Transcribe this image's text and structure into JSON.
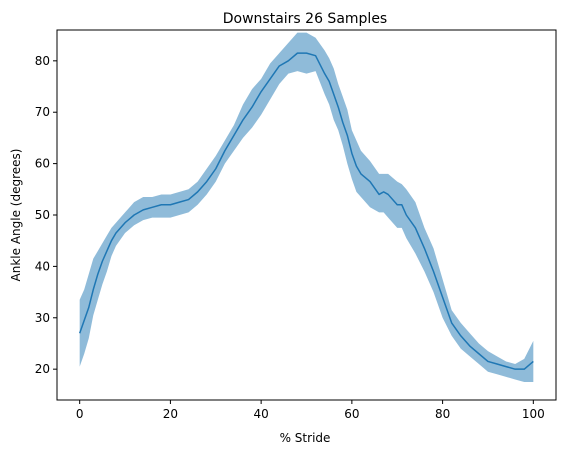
{
  "chart_data": {
    "type": "line",
    "title": "Downstairs 26 Samples",
    "xlabel": "% Stride",
    "ylabel": "Ankle Angle (degrees)",
    "xlim": [
      -5,
      105
    ],
    "ylim": [
      14,
      86
    ],
    "x_ticks": [
      0,
      20,
      40,
      60,
      80,
      100
    ],
    "y_ticks": [
      20,
      30,
      40,
      50,
      60,
      70,
      80
    ],
    "x_tick_labels": [
      "0",
      "20",
      "40",
      "60",
      "80",
      "100"
    ],
    "y_tick_labels": [
      "20",
      "30",
      "40",
      "50",
      "60",
      "70",
      "80"
    ],
    "grid": false,
    "line_color": "#1f77b4",
    "band_color": "#1f77b4",
    "band_opacity": 0.5,
    "series": [
      {
        "x": [
          0,
          1,
          2,
          3,
          4,
          5,
          6,
          7,
          8,
          10,
          12,
          14,
          16,
          18,
          20,
          22,
          24,
          26,
          28,
          30,
          32,
          34,
          36,
          38,
          40,
          42,
          44,
          46,
          48,
          50,
          52,
          54,
          55,
          56,
          57,
          58,
          59,
          60,
          61,
          62,
          64,
          66,
          67,
          68,
          70,
          71,
          72,
          74,
          76,
          78,
          80,
          82,
          84,
          86,
          88,
          90,
          92,
          94,
          96,
          98,
          100
        ],
        "mean": [
          27.0,
          29.5,
          32.0,
          35.5,
          38.5,
          41.0,
          43.0,
          45.0,
          46.5,
          48.5,
          50.0,
          51.0,
          51.5,
          52.0,
          52.0,
          52.5,
          53.0,
          54.5,
          56.5,
          59.0,
          62.5,
          65.5,
          68.5,
          71.0,
          74.0,
          76.5,
          79.0,
          80.0,
          81.5,
          81.5,
          81.0,
          77.5,
          76.0,
          73.5,
          71.0,
          68.0,
          65.5,
          62.0,
          59.5,
          58.0,
          56.5,
          54.0,
          54.5,
          54.0,
          52.0,
          52.0,
          50.0,
          47.5,
          43.5,
          39.0,
          34.0,
          29.0,
          26.5,
          24.5,
          23.0,
          21.5,
          21.0,
          20.5,
          20.0,
          20.0,
          21.5
        ],
        "upper": [
          33.5,
          35.5,
          38.5,
          41.5,
          43.0,
          44.5,
          46.0,
          47.5,
          48.5,
          50.5,
          52.5,
          53.5,
          53.5,
          54.0,
          54.0,
          54.5,
          55.0,
          56.5,
          59.0,
          61.5,
          64.5,
          67.5,
          71.5,
          74.5,
          76.5,
          79.5,
          81.5,
          83.5,
          85.5,
          85.5,
          84.5,
          82.0,
          80.5,
          78.5,
          75.5,
          73.0,
          70.5,
          66.5,
          64.5,
          62.5,
          60.5,
          58.0,
          58.0,
          58.0,
          56.5,
          56.0,
          55.0,
          52.5,
          47.5,
          43.5,
          37.5,
          31.5,
          29.0,
          27.0,
          25.0,
          23.5,
          22.5,
          21.5,
          21.0,
          22.0,
          25.5
        ],
        "lower": [
          20.5,
          23.0,
          26.0,
          30.5,
          33.5,
          36.5,
          39.0,
          42.0,
          44.0,
          46.5,
          48.0,
          49.0,
          49.5,
          49.5,
          49.5,
          50.0,
          50.5,
          52.0,
          54.0,
          56.5,
          60.0,
          62.5,
          65.0,
          67.0,
          69.5,
          72.5,
          75.5,
          77.5,
          78.0,
          77.5,
          78.0,
          73.5,
          71.5,
          68.5,
          66.5,
          63.5,
          60.0,
          57.0,
          54.5,
          53.5,
          51.5,
          50.5,
          50.5,
          49.5,
          47.5,
          47.5,
          45.5,
          42.5,
          39.0,
          35.0,
          30.0,
          26.5,
          24.0,
          22.5,
          21.0,
          19.5,
          19.0,
          18.5,
          18.0,
          17.5,
          17.5
        ]
      }
    ]
  }
}
